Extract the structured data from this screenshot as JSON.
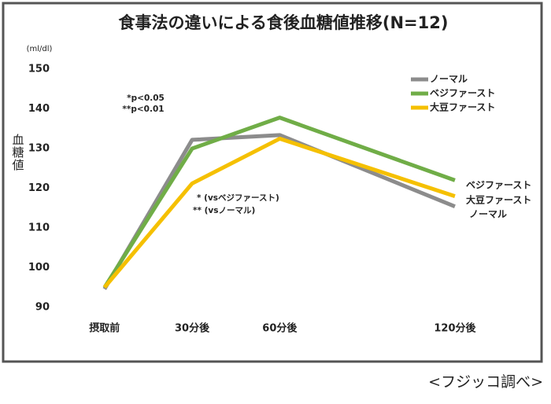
{
  "chart_data": {
    "type": "line",
    "title": "食事法の違いによる食後血糖値推移(N=12)",
    "y_unit": "(ml/dl)",
    "y_label": "血糖値",
    "source": "<フジッコ調べ>",
    "annotations": [
      "*p<0.05",
      "**p<0.01",
      "* (vsベジファースト)",
      "** (vsノーマル)"
    ],
    "x": [
      0,
      30,
      60,
      120
    ],
    "xlim": [
      -18,
      137
    ],
    "xticks": [
      {
        "value": 0,
        "label": "摂取前"
      },
      {
        "value": 30,
        "label": "30分後"
      },
      {
        "value": 60,
        "label": "60分後"
      },
      {
        "value": 120,
        "label": "120分後"
      }
    ],
    "ylim": [
      88,
      152
    ],
    "yticks": [
      90,
      100,
      110,
      120,
      130,
      140,
      150
    ],
    "grid": false,
    "legend": "top-right",
    "series": [
      {
        "name": "ノーマル",
        "color": "#8c8c8c",
        "values": [
          94.6,
          132.2,
          133.4,
          115.4
        ]
      },
      {
        "name": "ベジファースト",
        "color": "#70ad47",
        "values": [
          95,
          130,
          137.8,
          122
        ]
      },
      {
        "name": "大豆ファースト",
        "color": "#f5c000",
        "values": [
          95,
          121.2,
          132.5,
          118
        ]
      }
    ]
  }
}
